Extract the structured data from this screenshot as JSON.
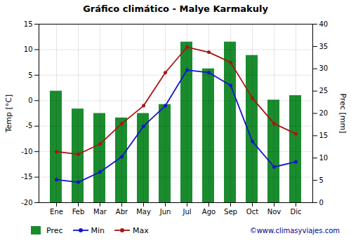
{
  "chart_data": {
    "type": "bar",
    "title": "Gráfico climático - Malye Karmakuly",
    "categories": [
      "Ene",
      "Feb",
      "Mar",
      "Abr",
      "May",
      "Jun",
      "Jul",
      "Ago",
      "Sep",
      "Oct",
      "Nov",
      "Dic"
    ],
    "series": [
      {
        "name": "Prec",
        "type": "bar",
        "axis": "y2",
        "color": "#1a8c2e",
        "values": [
          25,
          21,
          20,
          19,
          20,
          22,
          36,
          30,
          36,
          33,
          23,
          24
        ]
      },
      {
        "name": "Min",
        "type": "line",
        "marker": "circle",
        "color": "#1414cc",
        "values": [
          -15.5,
          -16,
          -14,
          -11,
          -5,
          -1,
          6,
          5.5,
          3,
          -8,
          -13,
          -12
        ]
      },
      {
        "name": "Max",
        "type": "line",
        "marker": "circle",
        "color": "#aa1414",
        "values": [
          -10,
          -10.5,
          -8.5,
          -4.5,
          -1,
          5.5,
          10.5,
          9.5,
          7.5,
          0.5,
          -4.5,
          -6.5
        ]
      }
    ],
    "ylabel": "Temp [°C]",
    "y2label": "Prec [mm]",
    "ylim": [
      -20,
      15
    ],
    "yticks": [
      -20,
      -15,
      -10,
      -5,
      0,
      5,
      10,
      15
    ],
    "y2lim": [
      0,
      40
    ],
    "y2ticks": [
      0,
      5,
      10,
      15,
      20,
      25,
      30,
      35,
      40
    ],
    "grid": true,
    "legend": "bottom",
    "annotations": [
      "©www.climasyviajes.com"
    ]
  }
}
